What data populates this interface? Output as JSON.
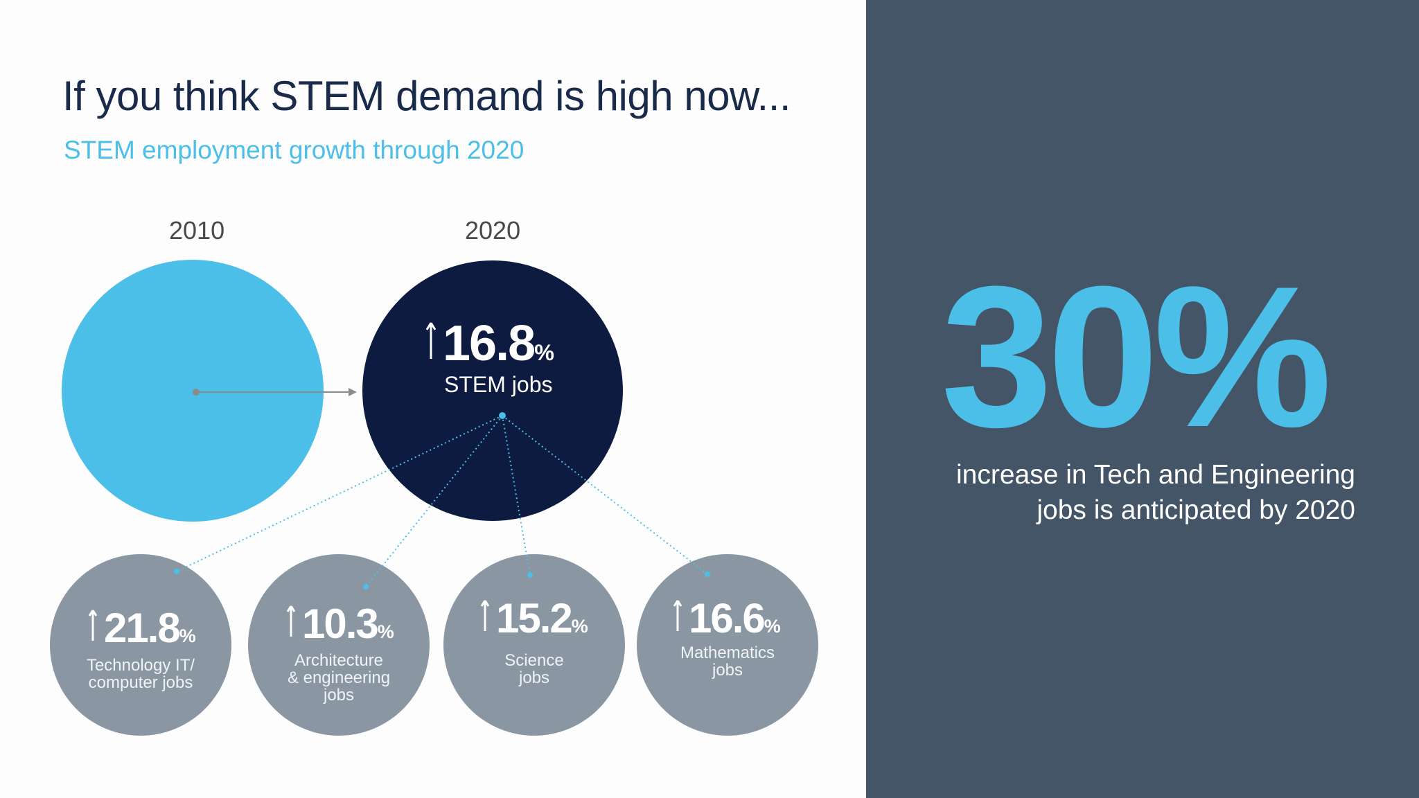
{
  "header": {
    "title": "If you think STEM demand is high now...",
    "subtitle": "STEM employment growth through 2020"
  },
  "years": {
    "start": "2010",
    "end": "2020"
  },
  "total": {
    "value": "16.8",
    "unit": "%",
    "label": "STEM jobs"
  },
  "breakdown": [
    {
      "value": "21.8",
      "unit": "%",
      "label": [
        "Technology IT/",
        "computer jobs"
      ]
    },
    {
      "value": "10.3",
      "unit": "%",
      "label": [
        "Architecture",
        "& engineering",
        "jobs"
      ]
    },
    {
      "value": "15.2",
      "unit": "%",
      "label": [
        "Science",
        "jobs"
      ]
    },
    {
      "value": "16.6",
      "unit": "%",
      "label": [
        "Mathematics",
        "jobs"
      ]
    }
  ],
  "highlight": {
    "value": "30%",
    "caption_line1": "increase in Tech and Engineering",
    "caption_line2": "jobs is anticipated by 2020"
  },
  "colors": {
    "accent_blue": "#4bbfe8",
    "navy": "#0d1b41",
    "grey_circle": "#8a97a3",
    "panel": "#435566"
  }
}
